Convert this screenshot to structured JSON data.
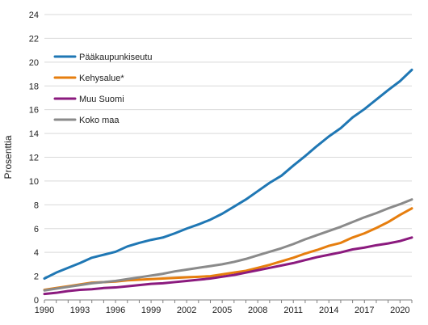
{
  "chart_data": {
    "type": "line",
    "title": "",
    "xlabel": "",
    "ylabel": "Prosenttia",
    "xlim": [
      1990,
      2021
    ],
    "ylim": [
      0,
      24
    ],
    "y_ticks": [
      0,
      2,
      4,
      6,
      8,
      10,
      12,
      14,
      16,
      18,
      20,
      22,
      24
    ],
    "x_ticks": [
      1990,
      1993,
      1996,
      1999,
      2002,
      2005,
      2008,
      2011,
      2014,
      2017,
      2020
    ],
    "y_tick_labels": [
      "0",
      "2",
      "4",
      "6",
      "8",
      "10",
      "12",
      "14",
      "16",
      "18",
      "20",
      "22",
      "24"
    ],
    "x_tick_labels": [
      "1990",
      "1993",
      "1996",
      "1999",
      "2002",
      "2005",
      "2008",
      "2011",
      "2014",
      "2017",
      "2020"
    ],
    "grid": "horizontal",
    "legend_position": "top-left",
    "x": [
      1990,
      1991,
      1992,
      1993,
      1994,
      1995,
      1996,
      1997,
      1998,
      1999,
      2000,
      2001,
      2002,
      2003,
      2004,
      2005,
      2006,
      2007,
      2008,
      2009,
      2010,
      2011,
      2012,
      2013,
      2014,
      2015,
      2016,
      2017,
      2018,
      2019,
      2020,
      2021
    ],
    "series": [
      {
        "name": "Pääkaupunkiseutu",
        "color": "#1f77b4",
        "values": [
          1.8,
          2.3,
          2.7,
          3.1,
          3.55,
          3.8,
          4.05,
          4.5,
          4.8,
          5.05,
          5.25,
          5.6,
          6.0,
          6.35,
          6.75,
          7.25,
          7.85,
          8.45,
          9.15,
          9.85,
          10.45,
          11.3,
          12.1,
          12.95,
          13.75,
          14.45,
          15.35,
          16.05,
          16.85,
          17.65,
          18.4,
          19.35
        ]
      },
      {
        "name": "Kehysalue*",
        "color": "#e67e0e",
        "values": [
          0.85,
          1.0,
          1.15,
          1.3,
          1.45,
          1.5,
          1.55,
          1.65,
          1.7,
          1.75,
          1.8,
          1.85,
          1.9,
          1.95,
          2.0,
          2.15,
          2.3,
          2.45,
          2.7,
          2.95,
          3.25,
          3.55,
          3.9,
          4.2,
          4.55,
          4.8,
          5.25,
          5.6,
          6.05,
          6.55,
          7.15,
          7.7
        ]
      },
      {
        "name": "Muu Suomi",
        "color": "#8b1a7e",
        "values": [
          0.5,
          0.6,
          0.75,
          0.85,
          0.9,
          1.0,
          1.05,
          1.15,
          1.25,
          1.35,
          1.4,
          1.5,
          1.6,
          1.7,
          1.8,
          1.95,
          2.1,
          2.3,
          2.5,
          2.7,
          2.9,
          3.1,
          3.35,
          3.6,
          3.8,
          4.0,
          4.25,
          4.4,
          4.6,
          4.75,
          4.95,
          5.25
        ]
      },
      {
        "name": "Koko maa",
        "color": "#8a8a8a",
        "values": [
          0.8,
          0.95,
          1.1,
          1.25,
          1.4,
          1.5,
          1.6,
          1.75,
          1.9,
          2.05,
          2.2,
          2.4,
          2.55,
          2.7,
          2.85,
          3.0,
          3.2,
          3.45,
          3.75,
          4.05,
          4.35,
          4.7,
          5.1,
          5.45,
          5.8,
          6.15,
          6.55,
          6.95,
          7.3,
          7.7,
          8.05,
          8.45
        ]
      }
    ]
  }
}
